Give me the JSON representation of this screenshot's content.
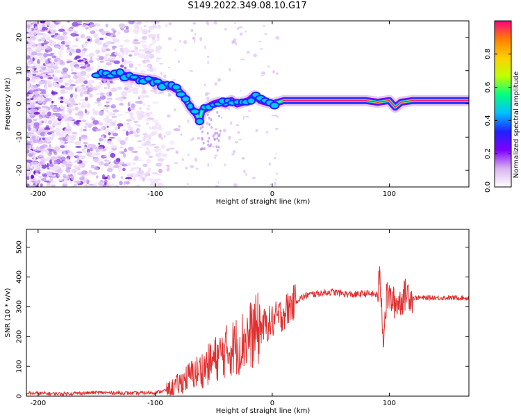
{
  "title": "S149.2022.349.08.10.G17",
  "chart_data": [
    {
      "type": "heatmap",
      "xlabel": "Height of straight line (km)",
      "ylabel": "Frequency (Hz)",
      "xlim": [
        -210,
        168
      ],
      "ylim": [
        -25,
        25
      ],
      "xticks": [
        -200,
        -100,
        0,
        100
      ],
      "yticks": [
        -20,
        -10,
        0,
        10,
        20
      ],
      "colorbar": {
        "label": "Normalized spectral amplitude",
        "range": [
          0,
          1
        ],
        "ticks": [
          0.0,
          0.2,
          0.4,
          0.6,
          0.8
        ],
        "colors": [
          "#ffffff",
          "#d9b3f0",
          "#8000ff",
          "#2020ff",
          "#00c0ff",
          "#00ff80",
          "#c0ff00",
          "#ffd000",
          "#ff8000",
          "#ff0080"
        ]
      },
      "ridge": {
        "x": [
          -150,
          -140,
          -130,
          -120,
          -110,
          -100,
          -95,
          -90,
          -85,
          -80,
          -75,
          -70,
          -65,
          -62,
          -60,
          -55,
          -50,
          -45,
          -40,
          -35,
          -30,
          -25,
          -20,
          -15,
          -10,
          -5,
          0,
          10,
          20,
          40,
          60,
          80,
          90,
          100,
          105,
          110,
          120,
          140,
          168
        ],
        "y": [
          9,
          8.5,
          9,
          8,
          7.5,
          7,
          6,
          5.5,
          5,
          4,
          2,
          -1,
          -3,
          -5,
          -2,
          -1,
          0,
          0.5,
          0,
          1,
          0,
          0.5,
          1,
          2.5,
          1,
          0.5,
          0,
          1,
          1,
          1,
          1,
          1,
          0.5,
          1,
          -1,
          0.5,
          1,
          1,
          1
        ]
      }
    },
    {
      "type": "line",
      "xlabel": "Height of straight line (km)",
      "ylabel": "SNR (10 * v/v)",
      "xlim": [
        -210,
        168
      ],
      "ylim": [
        0,
        560
      ],
      "xticks": [
        -200,
        -100,
        0,
        100
      ],
      "yticks": [
        0,
        100,
        200,
        300,
        400,
        500
      ],
      "color": "#e03030",
      "series": [
        {
          "x": [
            -210,
            -180,
            -150,
            -120,
            -100,
            -90,
            -80,
            -70,
            -60,
            -50,
            -40,
            -30,
            -20,
            -10,
            0,
            10,
            20,
            30,
            40,
            50,
            60,
            70,
            80,
            90,
            92,
            95,
            98,
            100,
            105,
            110,
            115,
            120,
            140,
            168
          ],
          "y": [
            10,
            8,
            12,
            10,
            12,
            20,
            40,
            70,
            90,
            120,
            150,
            170,
            200,
            230,
            250,
            280,
            320,
            340,
            345,
            350,
            345,
            340,
            345,
            340,
            400,
            200,
            340,
            330,
            310,
            320,
            350,
            330,
            330,
            330
          ]
        }
      ]
    }
  ]
}
